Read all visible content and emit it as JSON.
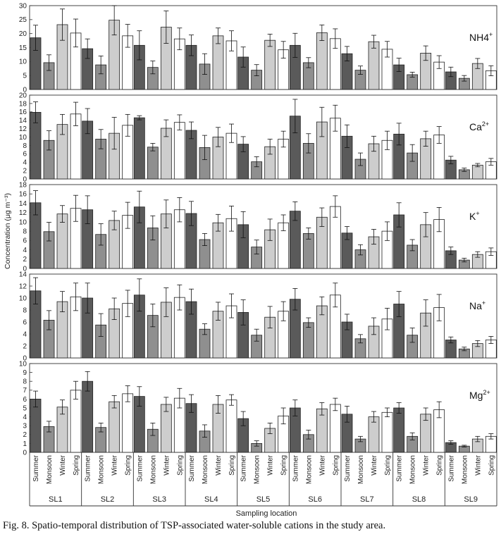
{
  "figure": {
    "caption": "Fig. 8. Spatio-temporal distribution of TSP-associated water-soluble cations in the study area.",
    "ylabel": "Concentration (μg m⁻³)",
    "xlabel": "Sampling location"
  },
  "colors": {
    "Summer": "#5a5a5a",
    "Monsoon": "#8f8f8f",
    "Winter": "#cdcdcd",
    "Spring": "#ffffff",
    "stroke": "#222222"
  },
  "chart_data": {
    "type": "bar",
    "locations": [
      "SL1",
      "SL2",
      "SL3",
      "SL4",
      "SL5",
      "SL6",
      "SL7",
      "SL8",
      "SL9"
    ],
    "seasons": [
      "Summer",
      "Monsoon",
      "Winter",
      "Spring"
    ],
    "panels": [
      {
        "ion": "NH4",
        "sup": "+",
        "ylim": [
          0,
          30
        ],
        "ticks": [
          0,
          5,
          10,
          15,
          20,
          25,
          30
        ],
        "values": [
          [
            18.5,
            9.6,
            23.2,
            20.2
          ],
          [
            14.6,
            8.8,
            24.8,
            19.2
          ],
          [
            15.8,
            7.9,
            22.3,
            18.1
          ],
          [
            15.8,
            9.1,
            19.2,
            17.4
          ],
          [
            11.6,
            6.9,
            17.6,
            14.2
          ],
          [
            15.8,
            9.6,
            20.3,
            18.2
          ],
          [
            12.8,
            6.9,
            17.1,
            14.4
          ],
          [
            8.8,
            5.3,
            13.0,
            9.8
          ],
          [
            6.3,
            4.0,
            9.3,
            6.7
          ]
        ],
        "errors": [
          [
            4.5,
            2.8,
            5.6,
            5.0
          ],
          [
            3.5,
            3.2,
            5.3,
            4.1
          ],
          [
            5.2,
            2.3,
            5.8,
            3.9
          ],
          [
            3.7,
            3.7,
            2.8,
            3.6
          ],
          [
            3.6,
            2.0,
            2.2,
            3.0
          ],
          [
            4.3,
            1.8,
            2.8,
            3.5
          ],
          [
            2.6,
            1.5,
            2.3,
            2.8
          ],
          [
            2.4,
            0.9,
            2.6,
            2.3
          ],
          [
            1.7,
            1.0,
            1.8,
            1.8
          ]
        ]
      },
      {
        "ion": "Ca",
        "sup": "2+",
        "ylim": [
          0,
          20
        ],
        "ticks": [
          0,
          2,
          4,
          6,
          8,
          10,
          12,
          14,
          16,
          18,
          20
        ],
        "values": [
          [
            15.9,
            9.2,
            13.0,
            15.5
          ],
          [
            13.8,
            9.5,
            10.9,
            12.8
          ],
          [
            14.6,
            7.6,
            12.1,
            13.5
          ],
          [
            11.6,
            7.5,
            10.0,
            10.9
          ],
          [
            8.3,
            4.1,
            7.7,
            9.5
          ],
          [
            15.0,
            8.5,
            13.6,
            14.5
          ],
          [
            10.2,
            4.7,
            8.4,
            9.2
          ],
          [
            10.7,
            6.2,
            9.6,
            10.5
          ],
          [
            4.5,
            2.2,
            3.3,
            4.1
          ]
        ],
        "errors": [
          [
            2.5,
            2.3,
            2.4,
            2.8
          ],
          [
            3.0,
            2.3,
            3.8,
            2.6
          ],
          [
            0.5,
            0.9,
            2.0,
            1.8
          ],
          [
            2.0,
            2.9,
            2.3,
            2.2
          ],
          [
            1.8,
            1.2,
            1.8,
            1.9
          ],
          [
            4.0,
            2.3,
            3.5,
            3.1
          ],
          [
            2.7,
            1.5,
            1.8,
            2.2
          ],
          [
            2.6,
            2.0,
            1.8,
            2.0
          ],
          [
            0.9,
            0.4,
            0.4,
            0.8
          ]
        ]
      },
      {
        "ion": "K",
        "sup": "+",
        "ylim": [
          0,
          18
        ],
        "ticks": [
          0,
          2,
          4,
          6,
          8,
          10,
          12,
          14,
          16,
          18
        ],
        "values": [
          [
            14.1,
            7.9,
            11.7,
            12.9
          ],
          [
            12.6,
            7.3,
            10.3,
            11.4
          ],
          [
            13.2,
            8.7,
            11.7,
            12.6
          ],
          [
            11.8,
            6.2,
            9.8,
            10.7
          ],
          [
            9.4,
            4.6,
            8.3,
            9.8
          ],
          [
            12.3,
            7.5,
            11.0,
            13.3
          ],
          [
            7.6,
            4.0,
            6.8,
            8.0
          ],
          [
            11.5,
            5.0,
            9.4,
            10.5
          ],
          [
            3.8,
            1.8,
            3.0,
            3.6
          ]
        ],
        "errors": [
          [
            2.6,
            2.0,
            1.8,
            2.8
          ],
          [
            3.0,
            2.3,
            2.0,
            2.8
          ],
          [
            3.4,
            2.6,
            3.0,
            2.6
          ],
          [
            2.6,
            1.3,
            1.8,
            2.7
          ],
          [
            2.8,
            1.5,
            2.3,
            1.7
          ],
          [
            2.0,
            1.2,
            2.0,
            2.3
          ],
          [
            1.4,
            1.1,
            1.6,
            2.0
          ],
          [
            2.6,
            1.2,
            2.6,
            2.6
          ],
          [
            0.8,
            0.4,
            0.6,
            0.8
          ]
        ]
      },
      {
        "ion": "Na",
        "sup": "+",
        "ylim": [
          0,
          14
        ],
        "ticks": [
          0,
          2,
          4,
          6,
          8,
          10,
          12,
          14
        ],
        "values": [
          [
            11.2,
            6.3,
            9.4,
            10.2
          ],
          [
            10.0,
            5.5,
            8.2,
            9.1
          ],
          [
            10.5,
            7.1,
            9.3,
            10.1
          ],
          [
            9.4,
            4.8,
            7.8,
            8.7
          ],
          [
            7.6,
            3.8,
            6.8,
            7.8
          ],
          [
            9.8,
            5.9,
            8.7,
            10.5
          ],
          [
            6.0,
            3.2,
            5.3,
            6.5
          ],
          [
            9.0,
            3.8,
            7.5,
            8.4
          ],
          [
            3.0,
            1.5,
            2.4,
            3.0
          ]
        ],
        "errors": [
          [
            2.2,
            1.6,
            1.7,
            2.3
          ],
          [
            2.5,
            1.9,
            1.8,
            2.2
          ],
          [
            2.7,
            1.9,
            2.4,
            2.1
          ],
          [
            2.1,
            0.9,
            1.5,
            2.0
          ],
          [
            2.1,
            1.0,
            1.8,
            1.6
          ],
          [
            1.8,
            0.8,
            1.5,
            2.0
          ],
          [
            1.3,
            0.7,
            1.4,
            1.8
          ],
          [
            2.1,
            1.2,
            2.2,
            2.2
          ],
          [
            0.5,
            0.3,
            0.5,
            0.6
          ]
        ]
      },
      {
        "ion": "Mg",
        "sup": "2+",
        "ylim": [
          0,
          10
        ],
        "ticks": [
          0,
          1,
          2,
          3,
          4,
          5,
          6,
          7,
          8,
          9,
          10
        ],
        "values": [
          [
            6.0,
            2.9,
            5.1,
            7.0
          ],
          [
            8.0,
            2.8,
            5.7,
            6.6
          ],
          [
            6.3,
            2.6,
            5.4,
            6.1
          ],
          [
            5.5,
            2.4,
            5.4,
            5.9
          ],
          [
            3.8,
            1.0,
            2.7,
            4.1
          ],
          [
            5.0,
            2.0,
            4.9,
            5.4
          ],
          [
            4.3,
            1.5,
            4.0,
            4.5
          ],
          [
            5.0,
            1.8,
            4.3,
            4.8
          ],
          [
            1.1,
            0.7,
            1.5,
            1.8
          ]
        ],
        "errors": [
          [
            0.9,
            0.6,
            0.8,
            1.0
          ],
          [
            1.1,
            0.5,
            0.7,
            0.9
          ],
          [
            1.1,
            0.7,
            0.8,
            1.1
          ],
          [
            1.0,
            0.7,
            1.0,
            0.6
          ],
          [
            0.8,
            0.3,
            0.6,
            0.9
          ],
          [
            0.9,
            0.5,
            0.7,
            0.7
          ],
          [
            0.9,
            0.3,
            0.6,
            0.5
          ],
          [
            0.6,
            0.4,
            0.7,
            0.9
          ],
          [
            0.2,
            0.1,
            0.3,
            0.3
          ]
        ]
      }
    ]
  }
}
